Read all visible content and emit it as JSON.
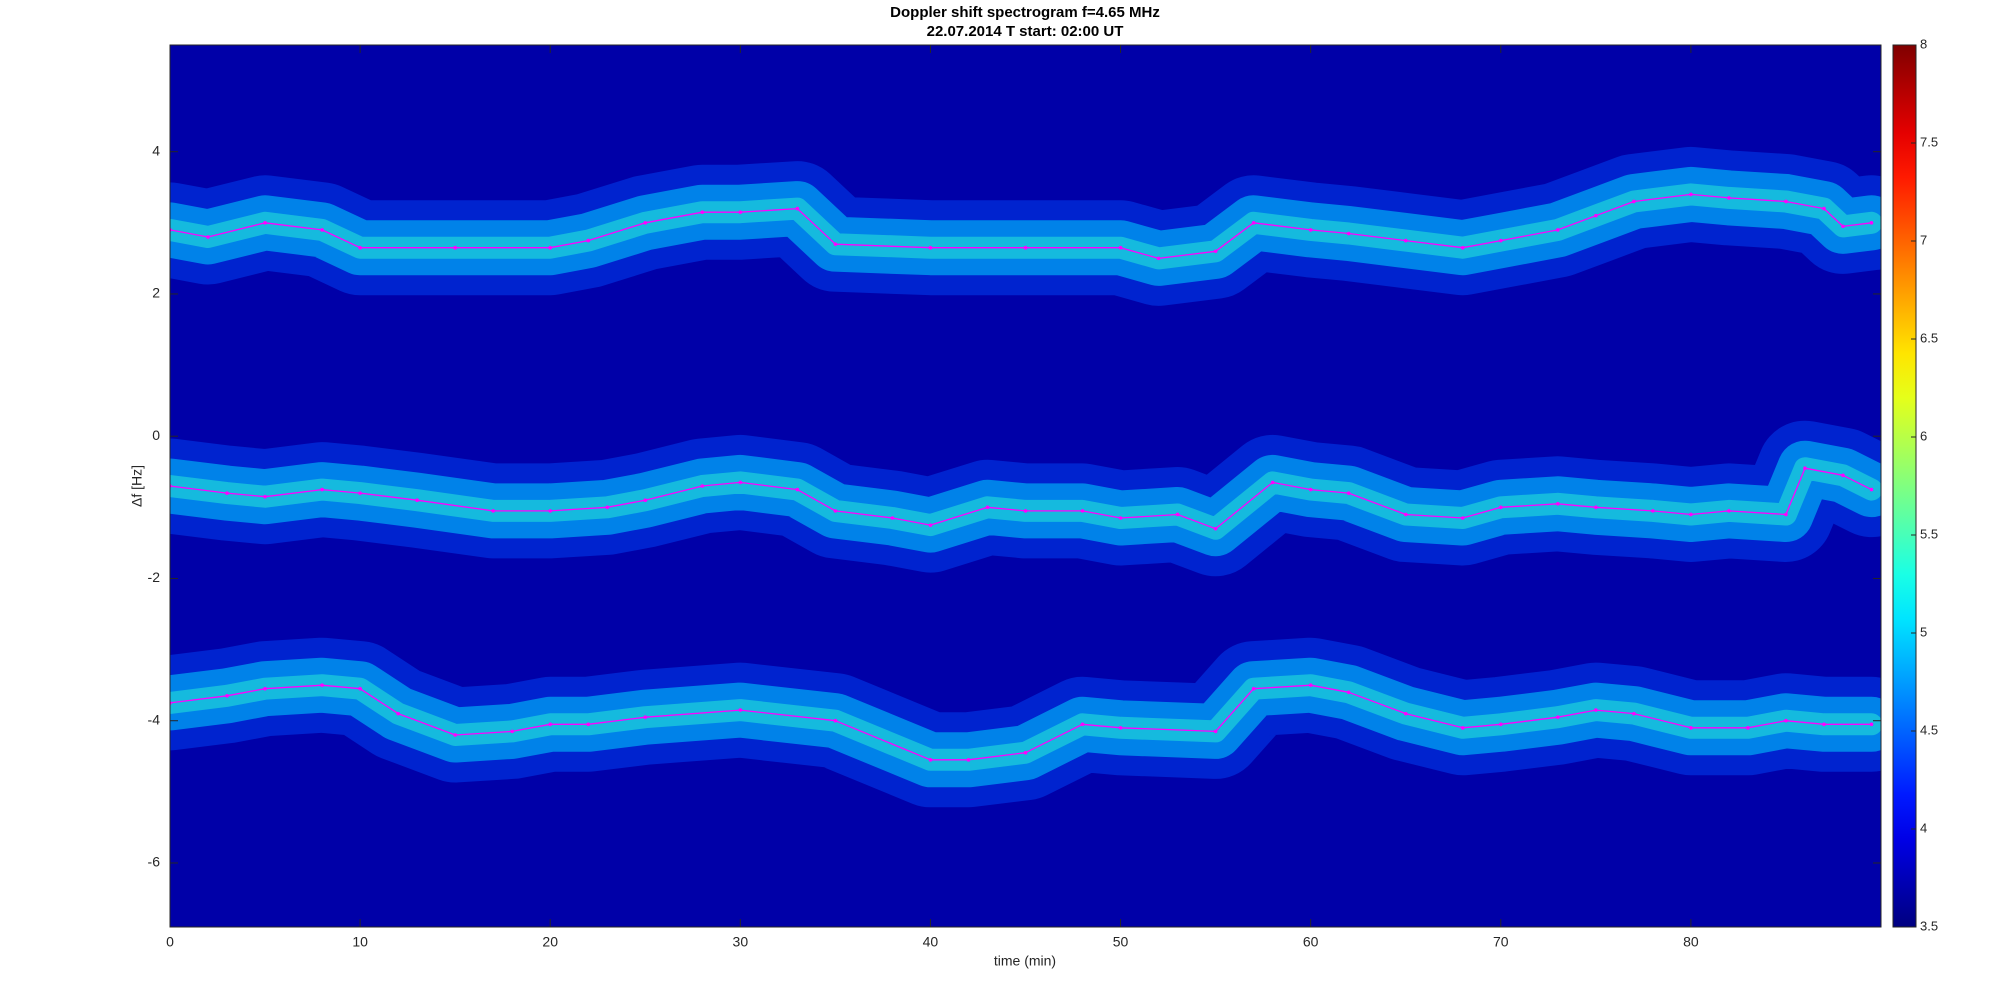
{
  "chart_data": {
    "type": "spectrogram",
    "title": "Doppler shift spectrogram f=4.65 MHz",
    "subtitle": "22.07.2014   T start: 02:00 UT",
    "xlabel": "time (min)",
    "ylabel": "Δf [Hz]",
    "xlim": [
      0,
      90
    ],
    "ylim": [
      -6.9,
      5.5
    ],
    "xticks": [
      0,
      10,
      20,
      30,
      40,
      50,
      60,
      70,
      80
    ],
    "yticks": [
      -6,
      -4,
      -2,
      0,
      2,
      4
    ],
    "colormap": "jet",
    "clim": [
      3.5,
      8
    ],
    "cticks": [
      3.5,
      4,
      4.5,
      5,
      5.5,
      6,
      6.5,
      7,
      7.5,
      8
    ],
    "series": [
      {
        "color": "#ff00ff",
        "x": [
          0,
          2,
          5,
          8,
          10,
          15,
          20,
          22,
          25,
          28,
          30,
          33,
          35,
          40,
          45,
          50,
          52,
          55,
          57,
          60,
          62,
          65,
          68,
          70,
          73,
          75,
          77,
          80,
          82,
          85,
          87,
          88,
          89.5
        ],
        "values": [
          2.9,
          2.8,
          3.0,
          2.9,
          2.65,
          2.65,
          2.65,
          2.75,
          3.0,
          3.15,
          3.15,
          3.2,
          2.7,
          2.65,
          2.65,
          2.65,
          2.5,
          2.6,
          3.0,
          2.9,
          2.85,
          2.75,
          2.65,
          2.75,
          2.9,
          3.1,
          3.3,
          3.4,
          3.35,
          3.3,
          3.2,
          2.95,
          3.0
        ]
      },
      {
        "color": "#ff00ff",
        "x": [
          0,
          3,
          5,
          8,
          10,
          13,
          17,
          20,
          23,
          25,
          28,
          30,
          33,
          35,
          38,
          40,
          43,
          45,
          48,
          50,
          53,
          55,
          58,
          60,
          62,
          65,
          68,
          70,
          73,
          75,
          78,
          80,
          82,
          85,
          86,
          88,
          89.5
        ],
        "values": [
          -0.7,
          -0.8,
          -0.85,
          -0.75,
          -0.8,
          -0.9,
          -1.05,
          -1.05,
          -1.0,
          -0.9,
          -0.7,
          -0.65,
          -0.75,
          -1.05,
          -1.15,
          -1.25,
          -1.0,
          -1.05,
          -1.05,
          -1.15,
          -1.1,
          -1.3,
          -0.65,
          -0.75,
          -0.8,
          -1.1,
          -1.15,
          -1.0,
          -0.95,
          -1.0,
          -1.05,
          -1.1,
          -1.05,
          -1.1,
          -0.45,
          -0.55,
          -0.75
        ]
      },
      {
        "color": "#ff00ff",
        "x": [
          0,
          3,
          5,
          8,
          10,
          12,
          15,
          18,
          20,
          22,
          25,
          30,
          35,
          40,
          42,
          45,
          48,
          50,
          55,
          57,
          60,
          62,
          65,
          68,
          70,
          73,
          75,
          77,
          80,
          83,
          85,
          87,
          89.5
        ],
        "values": [
          -3.75,
          -3.65,
          -3.55,
          -3.5,
          -3.55,
          -3.9,
          -4.2,
          -4.15,
          -4.05,
          -4.05,
          -3.95,
          -3.85,
          -4.0,
          -4.55,
          -4.55,
          -4.45,
          -4.05,
          -4.1,
          -4.15,
          -3.55,
          -3.5,
          -3.6,
          -3.9,
          -4.1,
          -4.05,
          -3.95,
          -3.85,
          -3.9,
          -4.1,
          -4.1,
          -4.0,
          -4.05,
          -4.05
        ]
      }
    ]
  }
}
